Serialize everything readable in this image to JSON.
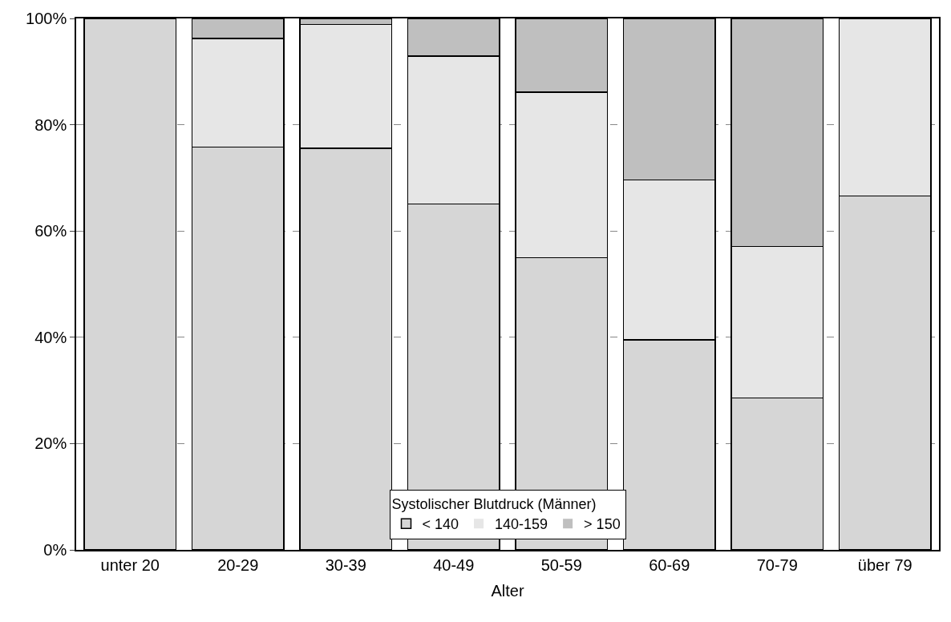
{
  "chart_data": {
    "type": "bar",
    "stacked": true,
    "xlabel": "Alter",
    "legend_title": "Systolischer Blutdruck (Männer)",
    "categories": [
      "unter 20",
      "20-29",
      "30-39",
      "40-49",
      "50-59",
      "60-69",
      "70-79",
      "über 79"
    ],
    "series": [
      {
        "name": "< 140",
        "color": "#d6d6d6",
        "values": [
          100,
          75.8,
          75.6,
          65.1,
          55.0,
          39.5,
          28.6,
          66.6
        ]
      },
      {
        "name": "140-159",
        "color": "#e6e6e6",
        "values": [
          0,
          20.4,
          23.3,
          27.8,
          31.1,
          30.1,
          28.5,
          33.4
        ]
      },
      {
        "name": "> 150",
        "color": "#bfbfbf",
        "values": [
          0,
          3.8,
          1.1,
          7.1,
          13.9,
          30.4,
          42.9,
          0
        ]
      }
    ],
    "ylim": [
      0,
      100
    ],
    "yticks": [
      {
        "value": 0,
        "label": "0%"
      },
      {
        "value": 20,
        "label": "20%"
      },
      {
        "value": 40,
        "label": "40%"
      },
      {
        "value": 60,
        "label": "60%"
      },
      {
        "value": 80,
        "label": "80%"
      },
      {
        "value": 100,
        "label": "100%"
      }
    ],
    "grid": "y",
    "legend": "bottom"
  }
}
